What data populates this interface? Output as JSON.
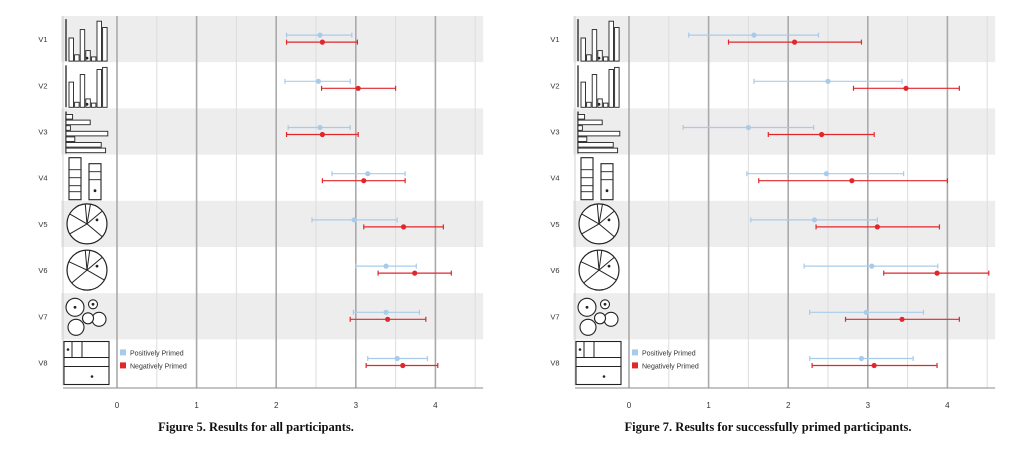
{
  "colors": {
    "positive": "#a9cbea",
    "negative": "#e0272b",
    "band": "#ededed",
    "grid": "#bdbdbd"
  },
  "chart_data": [
    {
      "type": "interval",
      "caption": "Figure 5. Results for all participants.",
      "rows": [
        "V1",
        "V2",
        "V3",
        "V4",
        "V5",
        "V6",
        "V7",
        "V8"
      ],
      "thumbnails": [
        "bar-chart-icon",
        "bar-chart-icon",
        "horizontal-bar-chart-icon",
        "stacked-bar-icon",
        "pie-chart-icon",
        "pie-chart-icon",
        "bubble-chart-icon",
        "treemap-icon"
      ],
      "xticks": [
        0,
        1,
        2,
        3,
        4
      ],
      "xlim": [
        0,
        4.6
      ],
      "legend": [
        "Positively Primed",
        "Negatively Primed"
      ],
      "series": [
        {
          "name": "Positively Primed",
          "mean": [
            2.55,
            2.53,
            2.55,
            3.15,
            2.98,
            3.38,
            3.38,
            3.52
          ],
          "low": [
            2.13,
            2.11,
            2.15,
            2.7,
            2.45,
            3.0,
            2.97,
            3.15
          ],
          "high": [
            2.95,
            2.93,
            2.93,
            3.62,
            3.52,
            3.76,
            3.8,
            3.9
          ]
        },
        {
          "name": "Negatively Primed",
          "mean": [
            2.58,
            3.03,
            2.58,
            3.1,
            3.6,
            3.74,
            3.4,
            3.59
          ],
          "low": [
            2.13,
            2.57,
            2.13,
            2.58,
            3.1,
            3.28,
            2.93,
            3.13
          ],
          "high": [
            3.02,
            3.5,
            3.03,
            3.62,
            4.1,
            4.2,
            3.88,
            4.03
          ]
        }
      ]
    },
    {
      "type": "interval",
      "caption": "Figure 7. Results for successfully primed participants.",
      "rows": [
        "V1",
        "V2",
        "V3",
        "V4",
        "V5",
        "V6",
        "V7",
        "V8"
      ],
      "thumbnails": [
        "bar-chart-icon",
        "bar-chart-icon",
        "horizontal-bar-chart-icon",
        "stacked-bar-icon",
        "pie-chart-icon",
        "pie-chart-icon",
        "bubble-chart-icon",
        "treemap-icon"
      ],
      "xticks": [
        0,
        1,
        2,
        3,
        4
      ],
      "xlim": [
        0,
        4.6
      ],
      "legend": [
        "Positively Primed",
        "Negatively Primed"
      ],
      "series": [
        {
          "name": "Positively Primed",
          "mean": [
            1.57,
            2.5,
            1.5,
            2.48,
            2.33,
            3.05,
            2.98,
            2.92
          ],
          "low": [
            0.75,
            1.57,
            0.68,
            1.48,
            1.53,
            2.2,
            2.27,
            2.27
          ],
          "high": [
            2.38,
            3.43,
            2.32,
            3.45,
            3.12,
            3.88,
            3.7,
            3.57
          ]
        },
        {
          "name": "Negatively Primed",
          "mean": [
            2.08,
            3.48,
            2.42,
            2.8,
            3.12,
            3.87,
            3.43,
            3.08
          ],
          "low": [
            1.25,
            2.82,
            1.75,
            1.63,
            2.35,
            3.2,
            2.72,
            2.3
          ],
          "high": [
            2.92,
            4.15,
            3.08,
            4.0,
            3.9,
            4.52,
            4.15,
            3.87
          ]
        }
      ]
    }
  ]
}
